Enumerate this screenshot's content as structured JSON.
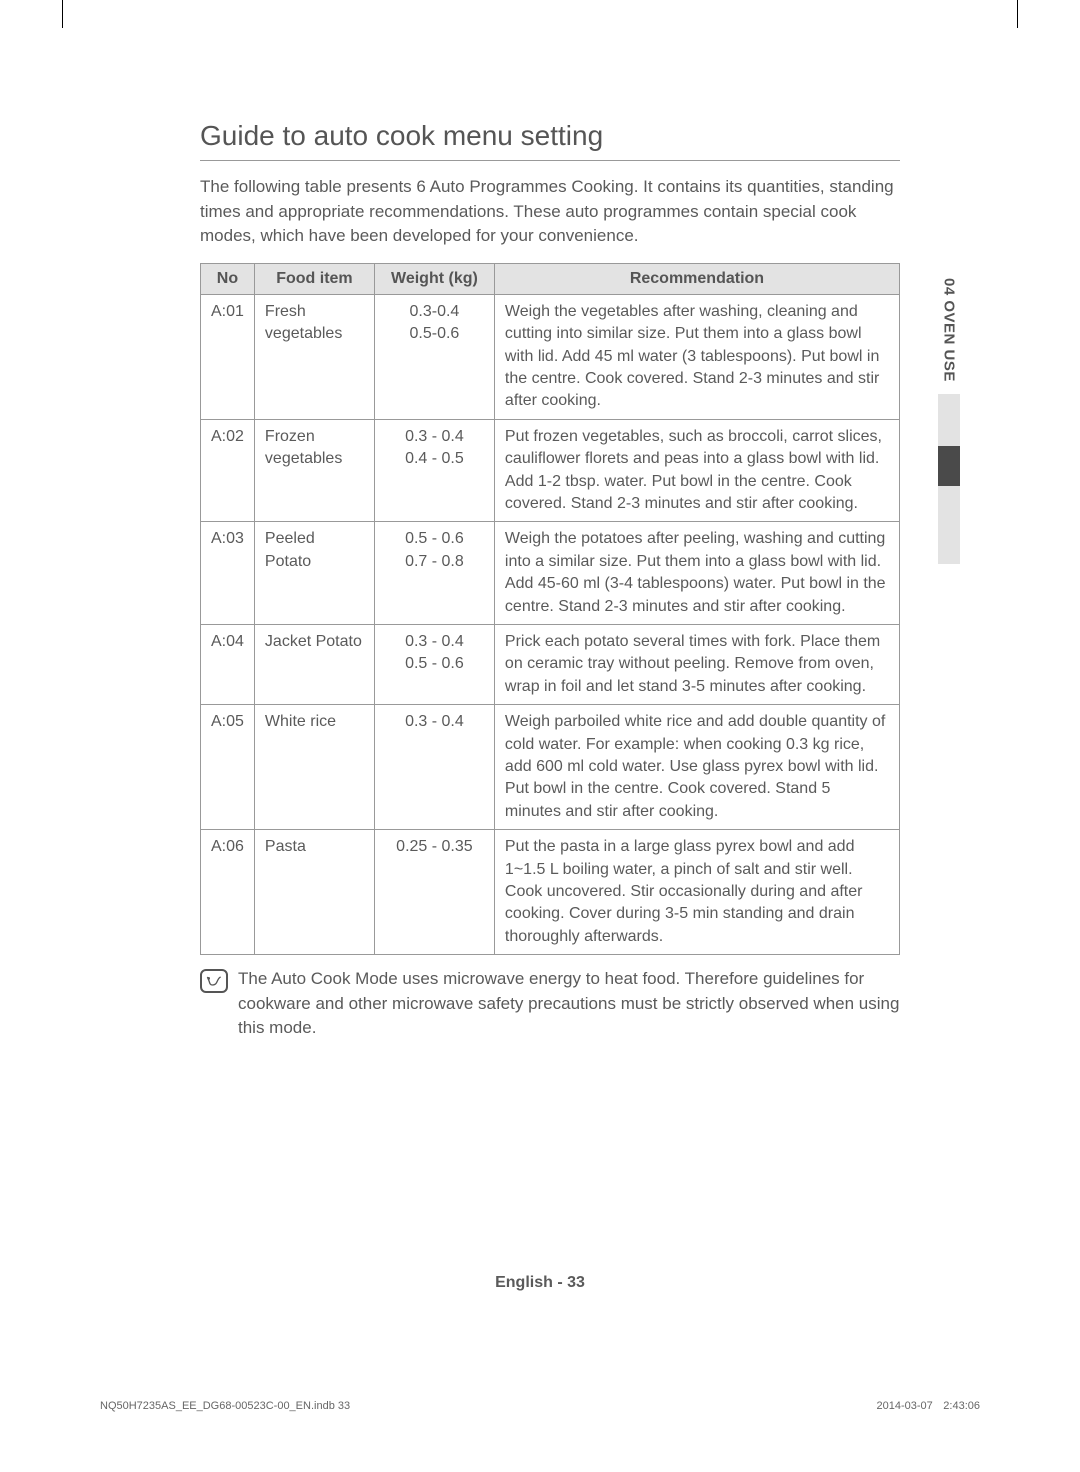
{
  "section_title": "Guide to auto cook menu setting",
  "intro": "The following table presents 6 Auto Programmes Cooking.\nIt contains its quantities, standing times and appropriate recommendations. These auto programmes contain special cook modes, which have been developed for your convenience.",
  "side_tab_label": "04  OVEN USE",
  "table": {
    "headers": {
      "no": "No",
      "food": "Food item",
      "weight": "Weight (kg)",
      "rec": "Recommendation"
    },
    "rows": [
      {
        "no": "A:01",
        "food": "Fresh vegetables",
        "weight": "0.3-0.4\n0.5-0.6",
        "rec": "Weigh the vegetables after washing, cleaning and cutting into similar size. Put them into a glass bowl with lid. Add 45 ml water (3 tablespoons). Put bowl in the centre. Cook covered. Stand 2-3 minutes and stir after cooking."
      },
      {
        "no": "A:02",
        "food": "Frozen vegetables",
        "weight": "0.3 - 0.4\n0.4 - 0.5",
        "rec": "Put frozen vegetables, such as broccoli, carrot slices, cauliflower florets and peas into a glass bowl with lid. Add 1-2 tbsp. water. Put bowl in the centre. Cook covered. Stand 2-3 minutes and stir after cooking."
      },
      {
        "no": "A:03",
        "food": "Peeled Potato",
        "weight": "0.5 - 0.6\n0.7 - 0.8",
        "rec": "Weigh the potatoes after peeling, washing and cutting into a similar size. Put them into a glass bowl with lid. Add 45-60 ml (3-4 tablespoons) water. Put bowl in the centre. Stand 2-3 minutes and stir after cooking."
      },
      {
        "no": "A:04",
        "food": "Jacket Potato",
        "weight": "0.3 - 0.4\n0.5 - 0.6",
        "rec": "Prick each potato several times with fork. Place them on ceramic tray without peeling. Remove from oven, wrap in foil and let stand 3-5 minutes after cooking."
      },
      {
        "no": "A:05",
        "food": "White rice",
        "weight": "0.3 - 0.4",
        "rec": "Weigh parboiled white rice and add double quantity of cold water. For example: when cooking 0.3 kg rice, add 600 ml cold water. Use glass pyrex bowl with lid.  Put bowl in the centre. Cook covered. Stand 5 minutes and stir after cooking."
      },
      {
        "no": "A:06",
        "food": "Pasta",
        "weight": "0.25 - 0.35",
        "rec": "Put the pasta in a large glass pyrex bowl and add 1~1.5 L boiling water, a pinch of salt and stir well. Cook uncovered. Stir occasionally during and after cooking. Cover during 3-5 min standing and drain thoroughly afterwards."
      }
    ]
  },
  "note": "The Auto Cook Mode uses microwave energy to heat food.\nTherefore guidelines for cookware and other microwave safety precautions must be strictly observed when using this mode.",
  "page_number_label": "English - ",
  "page_number": "33",
  "footer_left": "NQ50H7235AS_EE_DG68-00523C-00_EN.indb   33",
  "footer_right": "2014-03-07      2:43:06"
}
